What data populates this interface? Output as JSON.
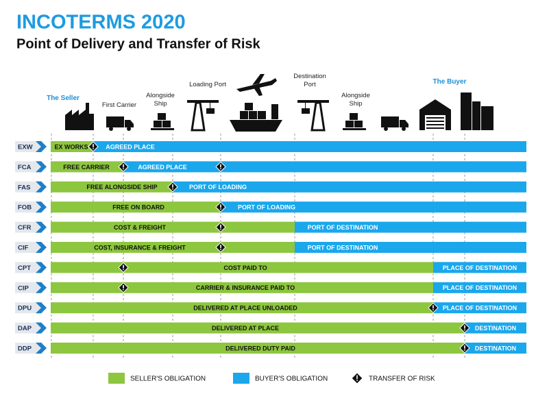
{
  "header": {
    "title": "INCOTERMS 2020",
    "subtitle": "Point of Delivery and Transfer of Risk"
  },
  "stages": [
    "The Seller",
    "First Carrier",
    "Alongside Ship",
    "Loading Port",
    "Destination Port",
    "Alongside Ship",
    "The Buyer"
  ],
  "rows": [
    {
      "code": "EXW",
      "seller": "EX WORKS",
      "buyer": "AGREED PLACE"
    },
    {
      "code": "FCA",
      "seller": "FREE CARRIER",
      "buyer": "AGREED PLACE"
    },
    {
      "code": "FAS",
      "seller": "FREE ALONGSIDE SHIP",
      "buyer": "PORT OF LOADING"
    },
    {
      "code": "FOB",
      "seller": "FREE  ON BOARD",
      "buyer": "PORT OF LOADING"
    },
    {
      "code": "CFR",
      "seller": "COST & FREIGHT",
      "buyer": "PORT OF DESTINATION"
    },
    {
      "code": "CIF",
      "seller": "COST, INSURANCE & FREIGHT",
      "buyer": "PORT OF DESTINATION"
    },
    {
      "code": "CPT",
      "seller": "COST PAID TO",
      "buyer": "PLACE OF DESTINATION"
    },
    {
      "code": "CIP",
      "seller": "CARRIER & INSURANCE PAID TO",
      "buyer": "PLACE OF DESTINATION"
    },
    {
      "code": "DPU",
      "seller": "DELIVERED AT PLACE UNLOADED",
      "buyer": "PLACE OF DESTINATION"
    },
    {
      "code": "DAP",
      "seller": "DELIVERED AT PLACE",
      "buyer": "DESTINATION"
    },
    {
      "code": "DDP",
      "seller": "DELIVERED DUTY PAID",
      "buyer": "DESTINATION"
    }
  ],
  "legend": [
    "SELLER'S OBLIGATION",
    "BUYER'S OBLIGATION",
    "TRANSFER OF RISK"
  ]
}
